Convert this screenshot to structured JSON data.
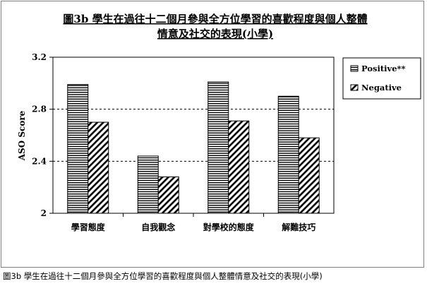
{
  "caption": "圖3b 學生在過往十二個月參與全方位學習的喜歡程度與個人整體情意及社交的表現(小學)",
  "chart_data": {
    "type": "bar",
    "title": [
      "圖3b 學生在過往十二個月參與全方位學習的喜歡程度與個人整體",
      "情意及社交的表現(小學)"
    ],
    "ylabel": "ASO Score",
    "xlabel": "",
    "ylim": [
      2,
      3.2
    ],
    "yticks": [
      "2",
      "2.4",
      "2.8",
      "3.2"
    ],
    "ytick_values": [
      2,
      2.4,
      2.8,
      3.2
    ],
    "gridlines": [
      2.4,
      2.8
    ],
    "categories": [
      "學習態度",
      "自我觀念",
      "對學校的態度",
      "解難技巧"
    ],
    "series": [
      {
        "name": "Positive**",
        "pattern": "horizontal-stripes",
        "values": [
          2.99,
          2.44,
          3.01,
          2.9
        ]
      },
      {
        "name": "Negative",
        "pattern": "diagonal-hatch",
        "values": [
          2.7,
          2.28,
          2.71,
          2.58
        ]
      }
    ],
    "legend_position": "right",
    "colors": {
      "line": "#000000",
      "fill": "#ffffff"
    }
  }
}
